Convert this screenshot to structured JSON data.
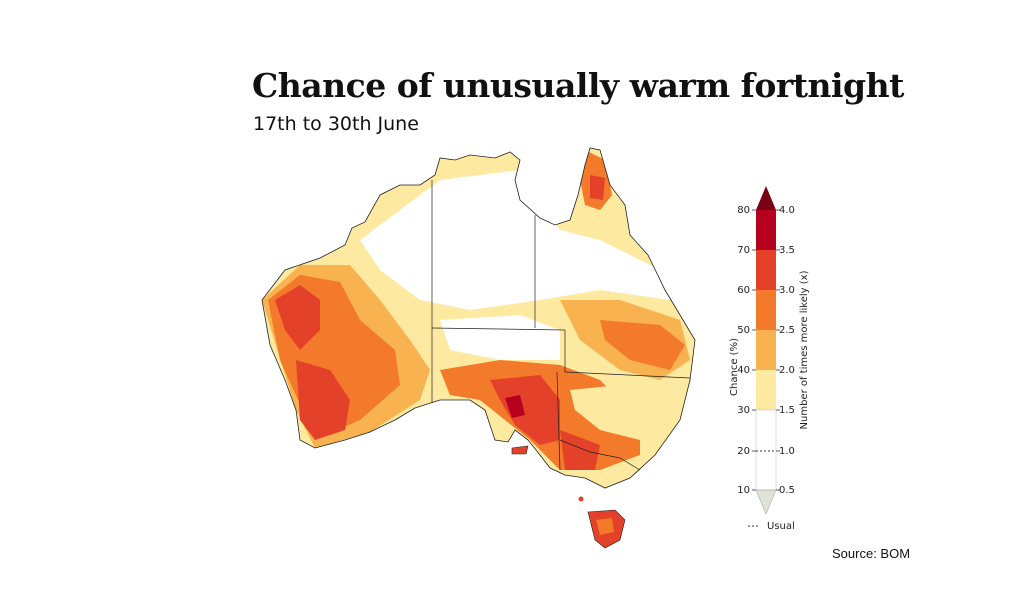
{
  "title": "Chance of unusually warm fortnight",
  "subtitle": "17th to 30th June",
  "source": "Source: BOM",
  "legend": {
    "left_axis_label": "Chance (%)",
    "right_axis_label": "Number of times more likely (x)",
    "usual_label": "Usual",
    "chance_ticks": [
      "80",
      "70",
      "60",
      "50",
      "40",
      "30",
      "20",
      "10"
    ],
    "times_ticks": [
      "4.0",
      "3.5",
      "3.0",
      "2.5",
      "2.0",
      "1.5",
      "1.0",
      "0.5"
    ],
    "bands": [
      {
        "from": 70,
        "to": 80,
        "color": "#b5001e"
      },
      {
        "from": 60,
        "to": 70,
        "color": "#e3412a"
      },
      {
        "from": 50,
        "to": 60,
        "color": "#f27a2a"
      },
      {
        "from": 40,
        "to": 50,
        "color": "#f8b24f"
      },
      {
        "from": 30,
        "to": 40,
        "color": "#fde9a0"
      },
      {
        "from": 10,
        "to": 30,
        "color": "#ffffff"
      }
    ],
    "top_arrow_color": "#7a0014",
    "bottom_arrow_color": "#dfe3d6"
  }
}
